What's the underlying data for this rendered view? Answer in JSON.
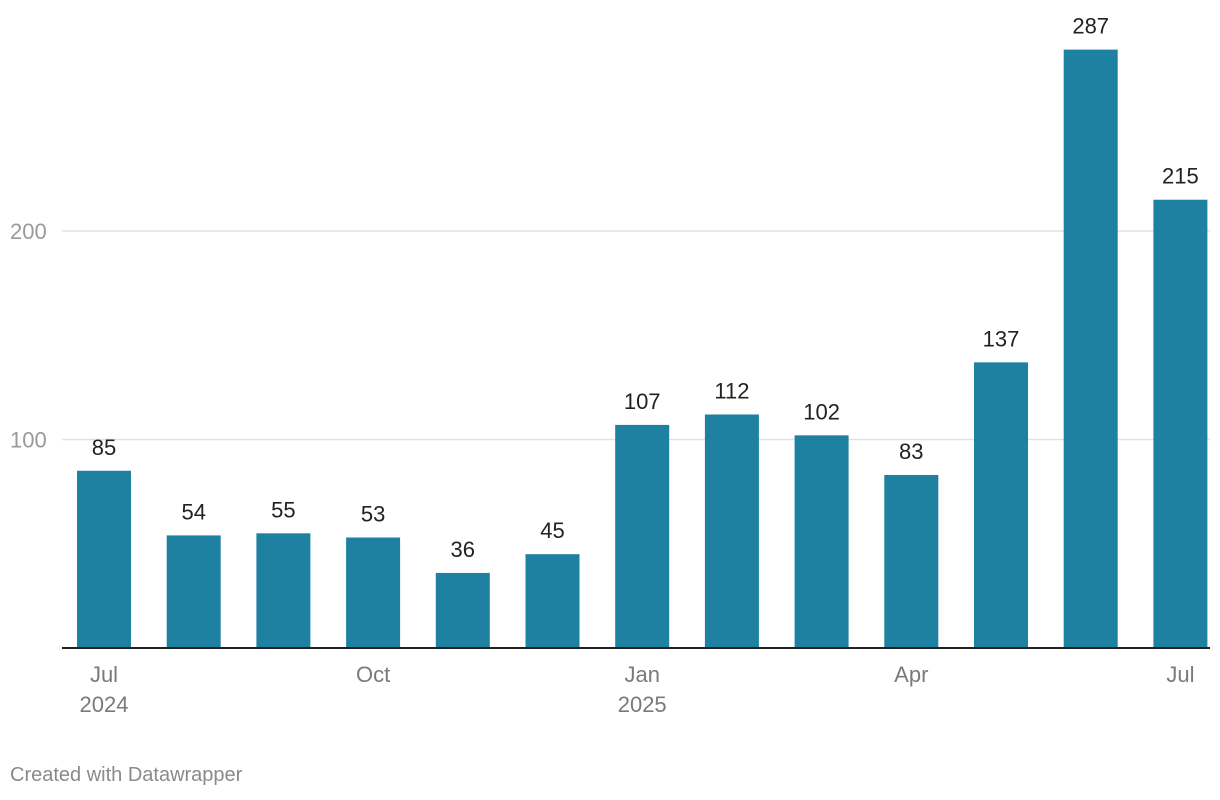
{
  "chart_data": {
    "type": "bar",
    "categories": [
      "2024-07",
      "2024-08",
      "2024-09",
      "2024-10",
      "2024-11",
      "2024-12",
      "2025-01",
      "2025-02",
      "2025-03",
      "2025-04",
      "2025-05",
      "2025-06",
      "2025-07"
    ],
    "values": [
      85,
      54,
      55,
      53,
      36,
      45,
      107,
      112,
      102,
      83,
      137,
      287,
      215
    ],
    "value_labels": [
      "85",
      "54",
      "55",
      "53",
      "36",
      "45",
      "107",
      "112",
      "102",
      "83",
      "137",
      "287",
      "215"
    ],
    "title": "",
    "xlabel": "",
    "ylabel": "",
    "ylim": [
      0,
      300
    ],
    "y_ticks": [
      {
        "value": 100,
        "label": "100"
      },
      {
        "value": 200,
        "label": "200"
      }
    ],
    "x_ticks": [
      {
        "index": 0,
        "line1": "Jul",
        "line2": "2024"
      },
      {
        "index": 3,
        "line1": "Oct",
        "line2": ""
      },
      {
        "index": 6,
        "line1": "Jan",
        "line2": "2025"
      },
      {
        "index": 9,
        "line1": "Apr",
        "line2": ""
      },
      {
        "index": 12,
        "line1": "Jul",
        "line2": ""
      }
    ],
    "grid": true,
    "bar_color": "#1e81a1"
  },
  "footer": {
    "credit": "Created with Datawrapper"
  }
}
